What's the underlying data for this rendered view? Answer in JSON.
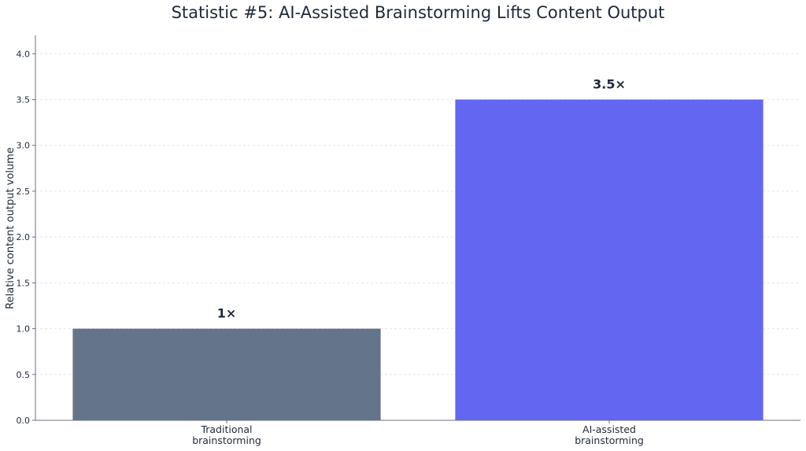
{
  "chart_data": {
    "type": "bar",
    "title": "Statistic #5: AI-Assisted Brainstorming Lifts Content Output",
    "ylabel": "Relative content output volume",
    "xlabel": "",
    "categories": [
      [
        "Traditional",
        "brainstorming"
      ],
      [
        "AI-assisted",
        "brainstorming"
      ]
    ],
    "values": [
      1.0,
      3.5
    ],
    "data_labels": [
      "1×",
      "3.5×"
    ],
    "colors": [
      "#64748b",
      "#6366f1"
    ],
    "ylim": [
      0,
      4.2
    ],
    "yticks": [
      0.0,
      0.5,
      1.0,
      1.5,
      2.0,
      2.5,
      3.0,
      3.5,
      4.0
    ],
    "ytick_labels": [
      "0.0",
      "0.5",
      "1.0",
      "1.5",
      "2.0",
      "2.5",
      "3.0",
      "3.5",
      "4.0"
    ],
    "grid": "y-dashed",
    "legend": "none"
  }
}
